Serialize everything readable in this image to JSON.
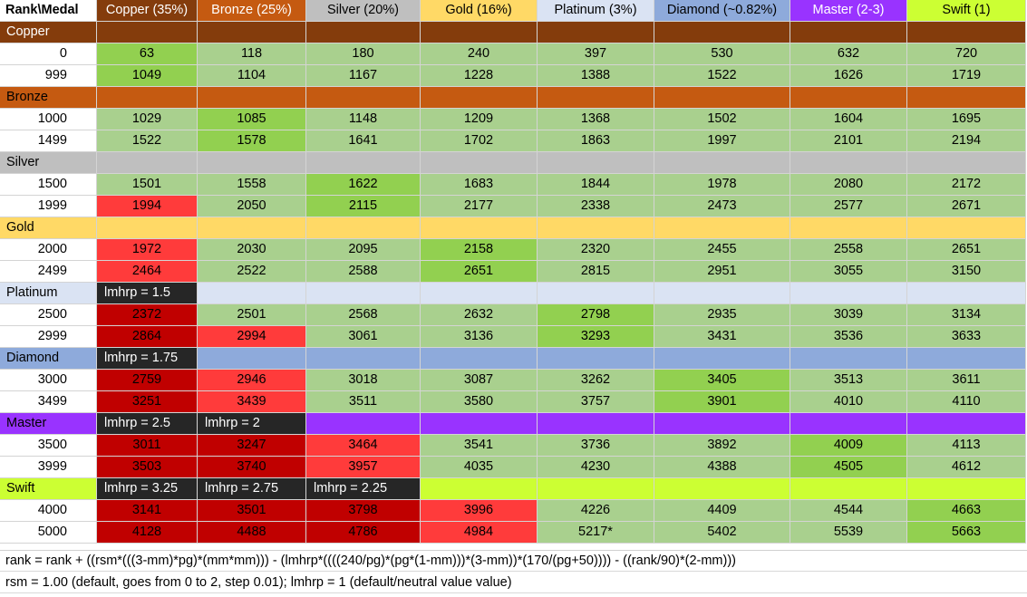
{
  "colors": {
    "light_green": "#a9d08e",
    "bright_green": "#92d050",
    "red": "#ff3b3b",
    "dark_red": "#c00000",
    "dark_cell": "#262626"
  },
  "header": {
    "corner": "Rank\\Medal",
    "columns": [
      {
        "label": "Copper (35%)",
        "bg": "#843c0c",
        "fg": "#ffffff"
      },
      {
        "label": "Bronze (25%)",
        "bg": "#c55a11",
        "fg": "#ffffff"
      },
      {
        "label": "Silver (20%)",
        "bg": "#bfbfbf",
        "fg": "#000000"
      },
      {
        "label": "Gold (16%)",
        "bg": "#ffd966",
        "fg": "#000000"
      },
      {
        "label": "Platinum (3%)",
        "bg": "#dae3f3",
        "fg": "#000000"
      },
      {
        "label": "Diamond (~0.82%)",
        "bg": "#8eaadb",
        "fg": "#000000"
      },
      {
        "label": "Master (2-3)",
        "bg": "#9933ff",
        "fg": "#ffffff"
      },
      {
        "label": "Swift (1)",
        "bg": "#ccff33",
        "fg": "#000000"
      }
    ]
  },
  "bands": [
    {
      "label": "Copper",
      "bg": "#843c0c",
      "fg": "#ffffff",
      "notes": [
        "",
        "",
        "",
        "",
        "",
        "",
        "",
        ""
      ],
      "rows": [
        {
          "rank": "0",
          "values": [
            "63",
            "118",
            "180",
            "240",
            "397",
            "530",
            "632",
            "720"
          ],
          "colors": [
            "G",
            "g",
            "g",
            "g",
            "g",
            "g",
            "g",
            "g"
          ]
        },
        {
          "rank": "999",
          "values": [
            "1049",
            "1104",
            "1167",
            "1228",
            "1388",
            "1522",
            "1626",
            "1719"
          ],
          "colors": [
            "G",
            "g",
            "g",
            "g",
            "g",
            "g",
            "g",
            "g"
          ]
        }
      ]
    },
    {
      "label": "Bronze",
      "bg": "#c55a11",
      "fg": "#000000",
      "notes": [
        "",
        "",
        "",
        "",
        "",
        "",
        "",
        ""
      ],
      "rows": [
        {
          "rank": "1000",
          "values": [
            "1029",
            "1085",
            "1148",
            "1209",
            "1368",
            "1502",
            "1604",
            "1695"
          ],
          "colors": [
            "g",
            "G",
            "g",
            "g",
            "g",
            "g",
            "g",
            "g"
          ]
        },
        {
          "rank": "1499",
          "values": [
            "1522",
            "1578",
            "1641",
            "1702",
            "1863",
            "1997",
            "2101",
            "2194"
          ],
          "colors": [
            "g",
            "G",
            "g",
            "g",
            "g",
            "g",
            "g",
            "g"
          ]
        }
      ]
    },
    {
      "label": "Silver",
      "bg": "#bfbfbf",
      "fg": "#000000",
      "notes": [
        "",
        "",
        "",
        "",
        "",
        "",
        "",
        ""
      ],
      "rows": [
        {
          "rank": "1500",
          "values": [
            "1501",
            "1558",
            "1622",
            "1683",
            "1844",
            "1978",
            "2080",
            "2172"
          ],
          "colors": [
            "g",
            "g",
            "G",
            "g",
            "g",
            "g",
            "g",
            "g"
          ]
        },
        {
          "rank": "1999",
          "values": [
            "1994",
            "2050",
            "2115",
            "2177",
            "2338",
            "2473",
            "2577",
            "2671"
          ],
          "colors": [
            "r",
            "g",
            "G",
            "g",
            "g",
            "g",
            "g",
            "g"
          ]
        }
      ]
    },
    {
      "label": "Gold",
      "bg": "#ffd966",
      "fg": "#000000",
      "notes": [
        "",
        "",
        "",
        "",
        "",
        "",
        "",
        ""
      ],
      "rows": [
        {
          "rank": "2000",
          "values": [
            "1972",
            "2030",
            "2095",
            "2158",
            "2320",
            "2455",
            "2558",
            "2651"
          ],
          "colors": [
            "r",
            "g",
            "g",
            "G",
            "g",
            "g",
            "g",
            "g"
          ]
        },
        {
          "rank": "2499",
          "values": [
            "2464",
            "2522",
            "2588",
            "2651",
            "2815",
            "2951",
            "3055",
            "3150"
          ],
          "colors": [
            "r",
            "g",
            "g",
            "G",
            "g",
            "g",
            "g",
            "g"
          ]
        }
      ]
    },
    {
      "label": "Platinum",
      "bg": "#dae3f3",
      "fg": "#000000",
      "notes": [
        "lmhrp = 1.5",
        "",
        "",
        "",
        "",
        "",
        "",
        ""
      ],
      "rows": [
        {
          "rank": "2500",
          "values": [
            "2372",
            "2501",
            "2568",
            "2632",
            "2798",
            "2935",
            "3039",
            "3134"
          ],
          "colors": [
            "R",
            "g",
            "g",
            "g",
            "G",
            "g",
            "g",
            "g"
          ]
        },
        {
          "rank": "2999",
          "values": [
            "2864",
            "2994",
            "3061",
            "3136",
            "3293",
            "3431",
            "3536",
            "3633"
          ],
          "colors": [
            "R",
            "r",
            "g",
            "g",
            "G",
            "g",
            "g",
            "g"
          ]
        }
      ]
    },
    {
      "label": "Diamond",
      "bg": "#8eaadb",
      "fg": "#000000",
      "notes": [
        "lmhrp = 1.75",
        "",
        "",
        "",
        "",
        "",
        "",
        ""
      ],
      "rows": [
        {
          "rank": "3000",
          "values": [
            "2759",
            "2946",
            "3018",
            "3087",
            "3262",
            "3405",
            "3513",
            "3611"
          ],
          "colors": [
            "R",
            "r",
            "g",
            "g",
            "g",
            "G",
            "g",
            "g"
          ]
        },
        {
          "rank": "3499",
          "values": [
            "3251",
            "3439",
            "3511",
            "3580",
            "3757",
            "3901",
            "4010",
            "4110"
          ],
          "colors": [
            "R",
            "r",
            "g",
            "g",
            "g",
            "G",
            "g",
            "g"
          ]
        }
      ]
    },
    {
      "label": "Master",
      "bg": "#9933ff",
      "fg": "#000000",
      "notes": [
        "lmhrp = 2.5",
        "lmhrp = 2",
        "",
        "",
        "",
        "",
        "",
        ""
      ],
      "rows": [
        {
          "rank": "3500",
          "values": [
            "3011",
            "3247",
            "3464",
            "3541",
            "3736",
            "3892",
            "4009",
            "4113"
          ],
          "colors": [
            "R",
            "R",
            "r",
            "g",
            "g",
            "g",
            "G",
            "g"
          ]
        },
        {
          "rank": "3999",
          "values": [
            "3503",
            "3740",
            "3957",
            "4035",
            "4230",
            "4388",
            "4505",
            "4612"
          ],
          "colors": [
            "R",
            "R",
            "r",
            "g",
            "g",
            "g",
            "G",
            "g"
          ]
        }
      ]
    },
    {
      "label": "Swift",
      "bg": "#ccff33",
      "fg": "#000000",
      "notes": [
        "lmhrp = 3.25",
        "lmhrp = 2.75",
        "lmhrp = 2.25",
        "",
        "",
        "",
        "",
        ""
      ],
      "rows": [
        {
          "rank": "4000",
          "values": [
            "3141",
            "3501",
            "3798",
            "3996",
            "4226",
            "4409",
            "4544",
            "4663"
          ],
          "colors": [
            "R",
            "R",
            "R",
            "r",
            "g",
            "g",
            "g",
            "G"
          ]
        },
        {
          "rank": "5000",
          "values": [
            "4128",
            "4488",
            "4786",
            "4984",
            "5217*",
            "5402",
            "5539",
            "5663"
          ],
          "colors": [
            "R",
            "R",
            "R",
            "r",
            "g",
            "g",
            "g",
            "G"
          ]
        }
      ]
    }
  ],
  "footer": {
    "formula": "rank = rank + ((rsm*(((3-mm)*pg)*(mm*mm))) - (lmhrp*((((240/pg)*(pg*(1-mm)))*(3-mm))*(170/(pg+50)))) - ((rank/90)*(2-mm)))",
    "note": "rsm = 1.00 (default, goes from 0 to 2, step 0.01); lmhrp = 1 (default/neutral value value)"
  }
}
